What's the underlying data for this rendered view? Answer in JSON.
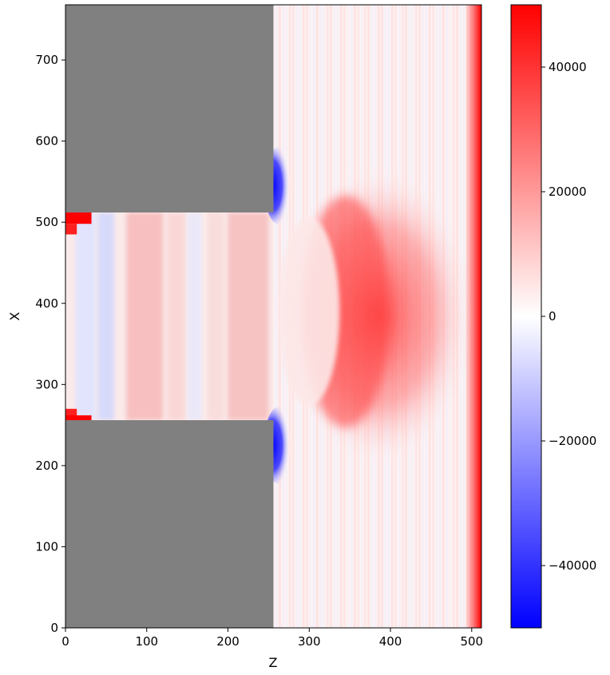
{
  "chart_data": {
    "type": "heatmap",
    "title": "",
    "xlabel": "Z",
    "ylabel": "X",
    "xlim": [
      0,
      512
    ],
    "ylim": [
      0,
      768
    ],
    "xticks": [
      "0",
      "100",
      "200",
      "300",
      "400",
      "500"
    ],
    "yticks": [
      "0",
      "100",
      "200",
      "300",
      "400",
      "500",
      "600",
      "700"
    ],
    "colormap": "bwr",
    "vmin": -50000,
    "vmax": 50000,
    "colorbar_ticks": [
      "−40000",
      "−20000",
      "0",
      "20000",
      "40000"
    ],
    "colorbar_tick_values": [
      -40000,
      -20000,
      0,
      20000,
      40000
    ],
    "mask_color": "#808080",
    "masked_regions": [
      {
        "z": [
          0,
          256
        ],
        "x": [
          512,
          768
        ]
      },
      {
        "z": [
          0,
          256
        ],
        "x": [
          0,
          256
        ]
      }
    ],
    "colors": {
      "negative": "#0000ff",
      "zero": "#ffffff",
      "positive": "#ff0000"
    }
  }
}
